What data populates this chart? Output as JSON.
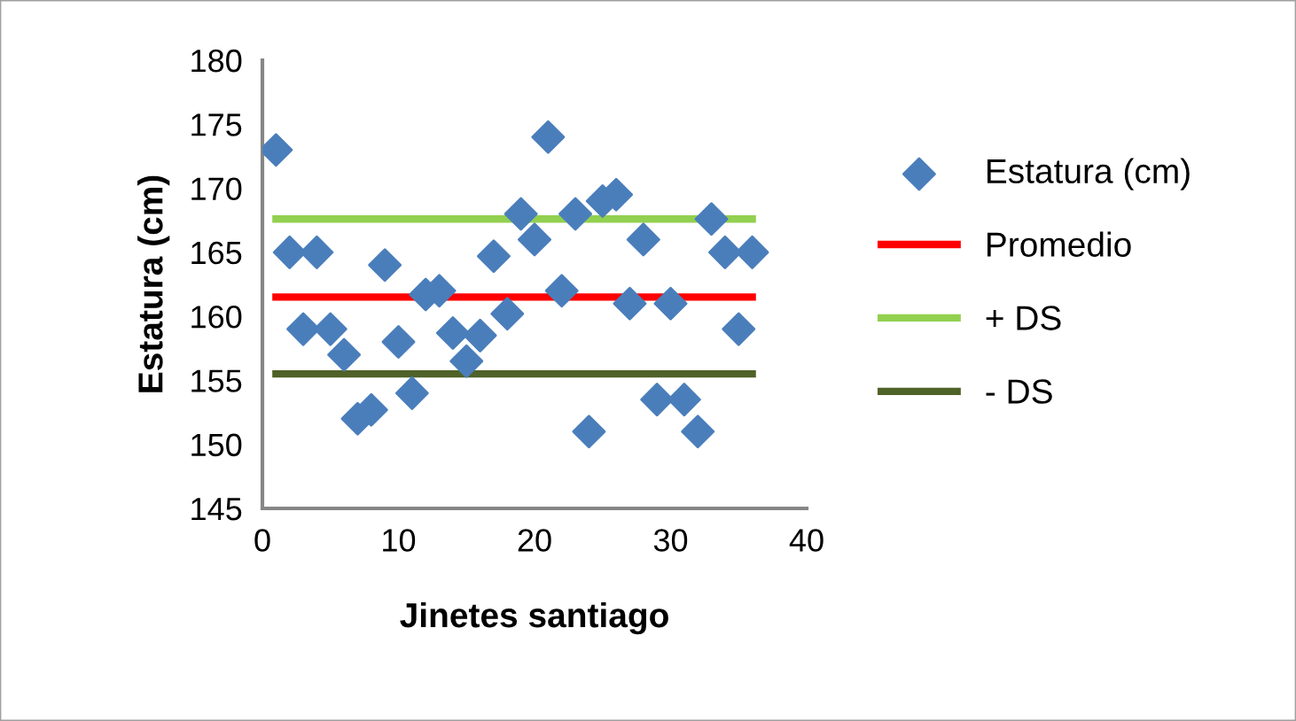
{
  "chart_data": {
    "type": "scatter",
    "xlabel": "Jinetes santiago",
    "ylabel": "Estatura (cm)",
    "xlim": [
      0,
      40
    ],
    "xticks": [
      0,
      10,
      20,
      30,
      40
    ],
    "ylim": [
      145,
      180
    ],
    "yticks": [
      145,
      150,
      155,
      160,
      165,
      170,
      175,
      180
    ],
    "grid": false,
    "legend": "right",
    "series": [
      {
        "name": "Estatura (cm)",
        "marker": "diamond",
        "color": "#4a7ebb",
        "x": [
          1,
          2,
          3,
          4,
          5,
          6,
          7,
          8,
          9,
          10,
          11,
          12,
          13,
          14,
          15,
          16,
          17,
          18,
          19,
          20,
          21,
          22,
          23,
          24,
          25,
          26,
          27,
          28,
          29,
          30,
          31,
          32,
          33,
          34,
          35,
          36
        ],
        "values": [
          173,
          165,
          159,
          165,
          159,
          157,
          152,
          152.7,
          164,
          158,
          154,
          161.7,
          162,
          158.7,
          156.5,
          158.5,
          164.7,
          160.2,
          168,
          166,
          174,
          162,
          168,
          151,
          169,
          169.5,
          161,
          166,
          153.5,
          161,
          153.5,
          151,
          167.6,
          165,
          159,
          165
        ]
      },
      {
        "name": "Promedio",
        "type": "line",
        "marker": "none",
        "color": "#ff0000",
        "x": [
          1,
          36
        ],
        "values": [
          161.5,
          161.5
        ]
      },
      {
        "name": "+ DS",
        "type": "line",
        "marker": "none",
        "color": "#92d050",
        "x": [
          1,
          36
        ],
        "values": [
          167.6,
          167.6
        ]
      },
      {
        "name": "- DS",
        "type": "line",
        "marker": "none",
        "color": "#4f6228",
        "x": [
          1,
          36
        ],
        "values": [
          155.5,
          155.5
        ]
      }
    ]
  }
}
